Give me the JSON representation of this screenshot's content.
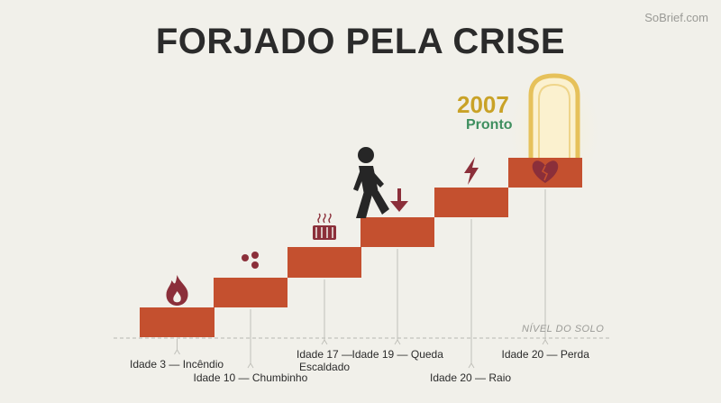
{
  "watermark": "SoBrief.com",
  "title": "FORJADO PELA CRISE",
  "ground_label": "NÍVEL DO SOLO",
  "goal": {
    "year": "2007",
    "status": "Pronto"
  },
  "colors": {
    "step": "#c4502f",
    "icon": "#8b2f3a",
    "figure": "#262626",
    "door": "#e6c15a",
    "glow": "#f7e6a6",
    "year": "#c9a227",
    "status": "#3f8f5f",
    "text": "#2b2b2b",
    "muted": "#9a9a96"
  },
  "steps": [
    {
      "label": "Idade 3 — Incêndio",
      "icon": "flame-icon"
    },
    {
      "label": "Idade 10 — Chumbinho",
      "icon": "pellets-icon"
    },
    {
      "label": "Idade 17 —\nEscaldado",
      "icon": "radiator-icon"
    },
    {
      "label": "Idade 19 — Queda",
      "icon": "down-arrow-icon"
    },
    {
      "label": "Idade 20 — Raio",
      "icon": "lightning-icon"
    },
    {
      "label": "Idade 20 — Perda",
      "icon": "broken-heart-icon"
    }
  ]
}
